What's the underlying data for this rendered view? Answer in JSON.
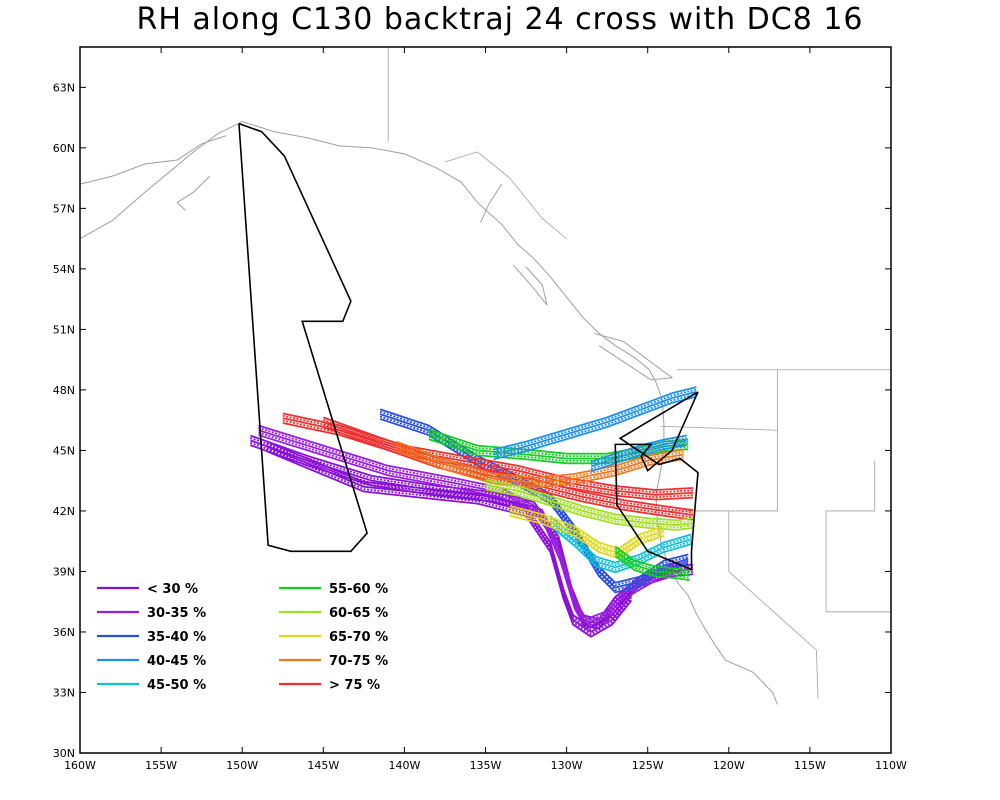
{
  "title": "RH along C130 backtraj 24 cross with DC8 16",
  "axes": {
    "lon_range": [
      -160,
      -110
    ],
    "lat_range": [
      30,
      65
    ],
    "x_ticks": [
      {
        "value": -160,
        "label": "160W"
      },
      {
        "value": -155,
        "label": "155W"
      },
      {
        "value": -150,
        "label": "150W"
      },
      {
        "value": -145,
        "label": "145W"
      },
      {
        "value": -140,
        "label": "140W"
      },
      {
        "value": -135,
        "label": "135W"
      },
      {
        "value": -130,
        "label": "130W"
      },
      {
        "value": -125,
        "label": "125W"
      },
      {
        "value": -120,
        "label": "120W"
      },
      {
        "value": -115,
        "label": "115W"
      },
      {
        "value": -110,
        "label": "110W"
      }
    ],
    "y_ticks": [
      {
        "value": 30,
        "label": "30N"
      },
      {
        "value": 33,
        "label": "33N"
      },
      {
        "value": 36,
        "label": "36N"
      },
      {
        "value": 39,
        "label": "39N"
      },
      {
        "value": 42,
        "label": "42N"
      },
      {
        "value": 45,
        "label": "45N"
      },
      {
        "value": 48,
        "label": "48N"
      },
      {
        "value": 51,
        "label": "51N"
      },
      {
        "value": 54,
        "label": "54N"
      },
      {
        "value": 57,
        "label": "57N"
      },
      {
        "value": 60,
        "label": "60N"
      },
      {
        "value": 63,
        "label": "63N"
      }
    ]
  },
  "legend": [
    {
      "label": "< 30 %",
      "color": "#8a10d8"
    },
    {
      "label": "30-35 %",
      "color": "#9a1ee0"
    },
    {
      "label": "35-40 %",
      "color": "#2850e0"
    },
    {
      "label": "40-45 %",
      "color": "#1e90f0"
    },
    {
      "label": "45-50 %",
      "color": "#10c0d8"
    },
    {
      "label": "55-60 %",
      "color": "#10d020"
    },
    {
      "label": "60-65 %",
      "color": "#a0e020"
    },
    {
      "label": "65-70 %",
      "color": "#e0d820"
    },
    {
      "label": "70-75 %",
      "color": "#f07820"
    },
    {
      "label": "> 75 %",
      "color": "#f03030"
    }
  ],
  "colors": {
    "coastline": "#a0a0a0",
    "flight_track": "#000000",
    "frame": "#000000"
  },
  "flight_track": [
    [
      -150.2,
      61.2
    ],
    [
      -148.8,
      60.8
    ],
    [
      -147.4,
      59.6
    ],
    [
      -143.3,
      52.4
    ],
    [
      -143.8,
      51.4
    ],
    [
      -146.3,
      51.4
    ],
    [
      -142.3,
      40.9
    ],
    [
      -143.3,
      40.0
    ],
    [
      -147.0,
      40.0
    ],
    [
      -148.4,
      40.3
    ],
    [
      -150.2,
      61.2
    ]
  ],
  "flight_track_2": [
    [
      -121.9,
      47.9
    ],
    [
      -123.5,
      45.0
    ],
    [
      -125.0,
      44.0
    ],
    [
      -125.4,
      44.7
    ],
    [
      -124.8,
      45.3
    ],
    [
      -127.0,
      45.3
    ],
    [
      -126.9,
      42.3
    ],
    [
      -125.0,
      40.0
    ],
    [
      -122.3,
      39.1
    ],
    [
      -122.3,
      40.0
    ],
    [
      -122.1,
      42.0
    ],
    [
      -121.9,
      43.9
    ],
    [
      -123.0,
      44.6
    ],
    [
      -124.3,
      44.3
    ],
    [
      -126.7,
      45.6
    ],
    [
      -121.9,
      47.9
    ]
  ],
  "trajectory_bundles": [
    {
      "color_index": 0,
      "points": [
        [
          -149.5,
          45.5
        ],
        [
          -146,
          44.5
        ],
        [
          -142,
          43.5
        ],
        [
          -138,
          43.0
        ],
        [
          -134.5,
          42.7
        ],
        [
          -132,
          42.2
        ],
        [
          -130.5,
          40.5
        ],
        [
          -129.7,
          38.0
        ],
        [
          -129.0,
          36.6
        ],
        [
          -128.0,
          36.4
        ],
        [
          -127.0,
          37.5
        ],
        [
          -125.5,
          38.5
        ],
        [
          -123.5,
          39.0
        ],
        [
          -122.2,
          39.1
        ]
      ]
    },
    {
      "color_index": 1,
      "points": [
        [
          -149.0,
          46.0
        ],
        [
          -145,
          45.0
        ],
        [
          -141,
          44.0
        ],
        [
          -137,
          43.4
        ],
        [
          -134,
          42.9
        ],
        [
          -131.5,
          41.8
        ],
        [
          -130.4,
          39.8
        ],
        [
          -129.5,
          37.4
        ],
        [
          -128.8,
          36.4
        ],
        [
          -127.5,
          36.8
        ],
        [
          -126.2,
          38.0
        ],
        [
          -124.5,
          38.8
        ],
        [
          -122.5,
          39.4
        ]
      ]
    },
    {
      "color_index": 0,
      "points": [
        [
          -148.5,
          45.2
        ],
        [
          -145.5,
          44.2
        ],
        [
          -142.5,
          43.2
        ],
        [
          -139,
          42.9
        ],
        [
          -135.5,
          42.6
        ],
        [
          -132.5,
          42.0
        ],
        [
          -131.0,
          40.2
        ],
        [
          -130.2,
          37.9
        ],
        [
          -129.6,
          36.6
        ],
        [
          -128.5,
          36.0
        ],
        [
          -127.2,
          36.6
        ],
        [
          -126.0,
          37.8
        ]
      ]
    },
    {
      "color_index": 2,
      "points": [
        [
          -141.5,
          46.8
        ],
        [
          -138.5,
          46.0
        ],
        [
          -135.5,
          44.5
        ],
        [
          -133,
          43.5
        ],
        [
          -131,
          42.6
        ],
        [
          -129.5,
          41.0
        ],
        [
          -128.0,
          39.0
        ],
        [
          -127.0,
          38.2
        ],
        [
          -125.5,
          38.5
        ],
        [
          -124.0,
          39.3
        ],
        [
          -122.5,
          39.6
        ]
      ]
    },
    {
      "color_index": 9,
      "points": [
        [
          -147.5,
          46.6
        ],
        [
          -144,
          46.0
        ],
        [
          -140,
          45.0
        ],
        [
          -136.5,
          44.5
        ],
        [
          -133,
          44.0
        ],
        [
          -130,
          43.4
        ],
        [
          -127,
          43.0
        ],
        [
          -124.5,
          42.8
        ],
        [
          -122.2,
          42.9
        ]
      ]
    },
    {
      "color_index": 9,
      "points": [
        [
          -145.0,
          46.4
        ],
        [
          -141.5,
          45.4
        ],
        [
          -138,
          44.4
        ],
        [
          -135,
          43.8
        ],
        [
          -132,
          43.3
        ],
        [
          -129,
          42.7
        ],
        [
          -126.5,
          42.3
        ],
        [
          -124.0,
          42.0
        ],
        [
          -122.2,
          41.8
        ]
      ]
    },
    {
      "color_index": 5,
      "points": [
        [
          -138.5,
          45.8
        ],
        [
          -135.5,
          45.0
        ],
        [
          -132.5,
          44.8
        ],
        [
          -130.0,
          44.6
        ],
        [
          -127.5,
          44.6
        ],
        [
          -125.5,
          44.9
        ],
        [
          -124.0,
          45.2
        ],
        [
          -122.5,
          45.3
        ]
      ]
    },
    {
      "color_index": 3,
      "points": [
        [
          -134.5,
          44.8
        ],
        [
          -132.5,
          45.2
        ],
        [
          -130.0,
          45.8
        ],
        [
          -127.5,
          46.4
        ],
        [
          -125.5,
          47.0
        ],
        [
          -123.5,
          47.6
        ],
        [
          -122.0,
          47.9
        ]
      ]
    },
    {
      "color_index": 8,
      "points": [
        [
          -140.5,
          45.2
        ],
        [
          -137.5,
          44.3
        ],
        [
          -134.5,
          43.6
        ],
        [
          -132,
          43.4
        ],
        [
          -129.5,
          43.6
        ],
        [
          -127,
          44.0
        ],
        [
          -125,
          44.5
        ],
        [
          -122.8,
          44.8
        ]
      ]
    },
    {
      "color_index": 6,
      "points": [
        [
          -135.0,
          43.3
        ],
        [
          -133,
          43.0
        ],
        [
          -131,
          42.5
        ],
        [
          -129,
          42.0
        ],
        [
          -127,
          41.6
        ],
        [
          -125.0,
          41.4
        ],
        [
          -123.2,
          41.3
        ],
        [
          -122.2,
          41.4
        ]
      ]
    },
    {
      "color_index": 4,
      "points": [
        [
          -131.0,
          41.5
        ],
        [
          -129.5,
          40.5
        ],
        [
          -128.2,
          39.5
        ],
        [
          -127.0,
          39.2
        ],
        [
          -125.5,
          39.6
        ],
        [
          -124.0,
          40.2
        ],
        [
          -122.3,
          40.6
        ]
      ]
    },
    {
      "color_index": 7,
      "points": [
        [
          -133.5,
          42.0
        ],
        [
          -131.5,
          41.6
        ],
        [
          -129.5,
          41.0
        ],
        [
          -128.0,
          40.2
        ],
        [
          -126.8,
          39.9
        ],
        [
          -125.5,
          40.6
        ],
        [
          -124.0,
          41.0
        ]
      ]
    },
    {
      "color_index": 5,
      "points": [
        [
          -127.0,
          40.0
        ],
        [
          -125.8,
          39.3
        ],
        [
          -124.5,
          39.0
        ],
        [
          -123.2,
          38.9
        ],
        [
          -122.4,
          38.8
        ]
      ]
    },
    {
      "color_index": 3,
      "points": [
        [
          -128.5,
          44.2
        ],
        [
          -127.0,
          44.6
        ],
        [
          -125.5,
          45.0
        ],
        [
          -124.0,
          45.3
        ],
        [
          -122.6,
          45.5
        ]
      ]
    }
  ]
}
